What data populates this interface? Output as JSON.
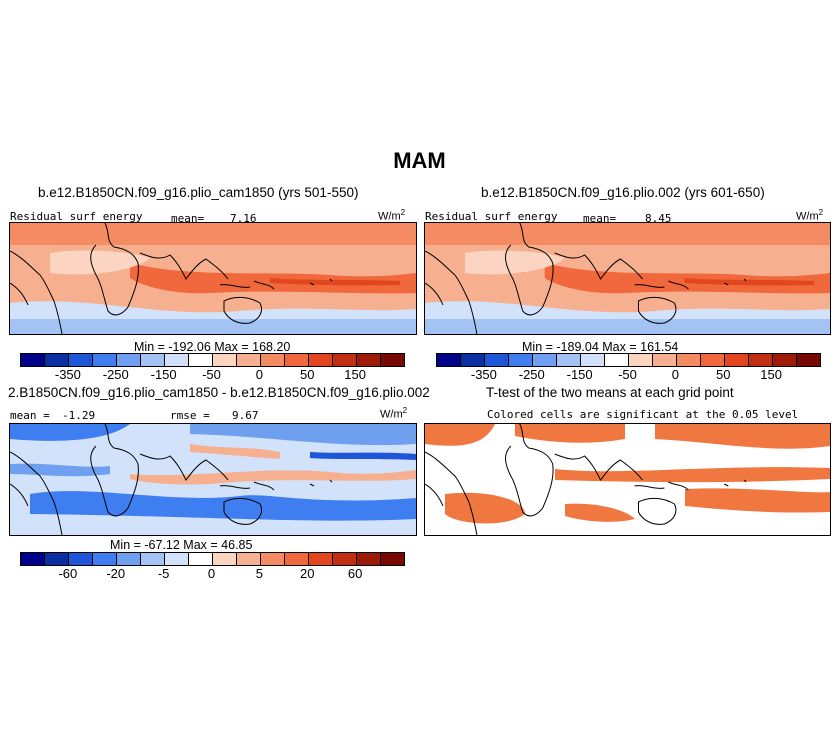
{
  "figure": {
    "season": "MAM"
  },
  "panel_a": {
    "case": "b.e12.B1850CN.f09_g16.plio_cam1850 (yrs 501-550)",
    "variable": "Residual surf energy",
    "mean_label": "mean=",
    "mean_value": "7.16",
    "units": "W/m",
    "units_sup": "2",
    "min_max": "Min = -192.06 Max = 168.20",
    "colorbar_ticks": [
      "-350",
      "-250",
      "-150",
      "-50",
      "0",
      "50",
      "150"
    ]
  },
  "panel_b": {
    "case": "b.e12.B1850CN.f09_g16.plio.002 (yrs 601-650)",
    "variable": "Residual surf energy",
    "mean_label": "mean=",
    "mean_value": "8.45",
    "units": "W/m",
    "units_sup": "2",
    "min_max": "Min = -189.04 Max = 161.54",
    "colorbar_ticks": [
      "-350",
      "-250",
      "-150",
      "-50",
      "0",
      "50",
      "150"
    ]
  },
  "panel_c": {
    "title": "2.B1850CN.f09_g16.plio_cam1850 - b.e12.B1850CN.f09_g16.plio.002",
    "mean_label": "mean =",
    "mean_value": "-1.29",
    "rmse_label": "rmse =",
    "rmse_value": "9.67",
    "units": "W/m",
    "units_sup": "2",
    "min_max": "Min = -67.12 Max = 46.85",
    "colorbar_ticks": [
      "-60",
      "-20",
      "-5",
      "0",
      "5",
      "20",
      "60"
    ]
  },
  "panel_d": {
    "title": "T-test of the two means at each grid point",
    "subtitle": "Colored cells are significant at the 0.05 level"
  },
  "colors": {
    "colorbar": [
      "#00008b",
      "#0a2fa0",
      "#1f55d8",
      "#3f7ef0",
      "#6fa0f0",
      "#a3c3f5",
      "#d2e2fa",
      "#ffffff",
      "#fbd5c2",
      "#f7b08f",
      "#f48b62",
      "#f0683c",
      "#e2461c",
      "#c03010",
      "#9d1a08",
      "#780800"
    ],
    "land_outline": "#000000",
    "significant": "#f07840"
  }
}
